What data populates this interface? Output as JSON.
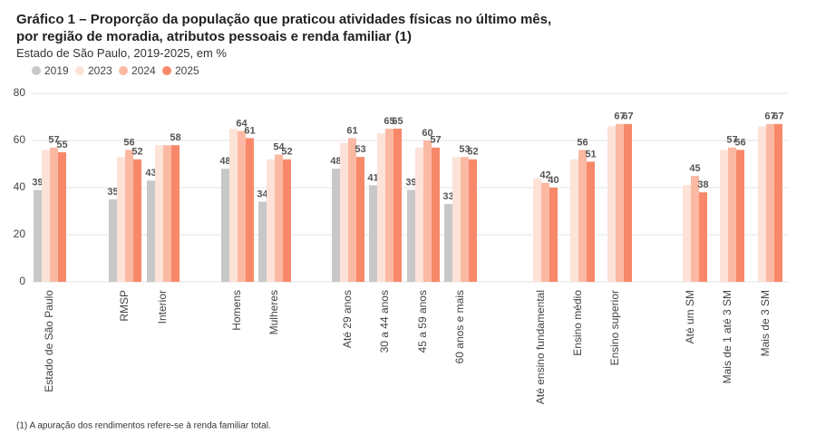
{
  "chart_data": {
    "type": "bar",
    "title": "Gráfico 1 – Proporção da população que praticou atividades físicas no último mês,",
    "title_line2": "por região de moradia, atributos pessoais e renda familiar (1)",
    "subtitle": "Estado de São Paulo, 2019-2025, em %",
    "footnote": "(1) A apuração dos rendimentos refere-se à renda familiar total.",
    "categories": [
      "Estado de São Paulo",
      "RMSP",
      "Interior",
      "Homens",
      "Mulheres",
      "Até 29 anos",
      "30 a 44 anos",
      "45 a 59 anos",
      "60 anos e mais",
      "Até ensino fundamental",
      "Ensino médio",
      "Ensino superior",
      "Até um SM",
      "Mais de 1 até 3 SM",
      "Mais de 3 SM"
    ],
    "series": [
      {
        "name": "2019",
        "color": "#c8c8c8",
        "values": [
          39,
          35,
          43,
          48,
          34,
          48,
          41,
          39,
          33,
          null,
          null,
          null,
          null,
          null,
          null
        ],
        "value_labels": [
          "39",
          "35",
          "43",
          "48",
          "34",
          "48",
          "41",
          "39",
          "33",
          null,
          null,
          null,
          null,
          null,
          null
        ]
      },
      {
        "name": "2023",
        "color": "#fde2d8",
        "values": [
          56,
          53,
          58,
          65,
          52,
          59,
          63,
          57,
          53,
          44,
          52,
          66,
          41,
          56,
          66
        ],
        "value_labels": [
          null,
          null,
          null,
          null,
          null,
          null,
          null,
          null,
          null,
          null,
          null,
          null,
          null,
          null,
          null
        ]
      },
      {
        "name": "2024",
        "color": "#fbb9a3",
        "values": [
          57,
          56,
          58,
          64,
          54,
          61,
          65,
          60,
          53,
          42,
          56,
          67,
          45,
          57,
          67
        ],
        "value_labels": [
          "57",
          "56",
          null,
          "64",
          "54",
          "61",
          "65",
          "60",
          "53",
          "42",
          "56",
          "67",
          "45",
          "57",
          "67"
        ]
      },
      {
        "name": "2025",
        "color": "#f7896a",
        "values": [
          55,
          52,
          58,
          61,
          52,
          53,
          65,
          57,
          52,
          40,
          51,
          67,
          38,
          56,
          67
        ],
        "value_labels": [
          "55",
          "52",
          "58",
          "61",
          "52",
          "53",
          "65",
          "57",
          "52",
          "40",
          "51",
          "67",
          "38",
          "56",
          "67"
        ]
      }
    ],
    "ylim": [
      0,
      80
    ],
    "yticks": [
      0,
      20,
      40,
      60,
      80
    ],
    "grid": true
  }
}
